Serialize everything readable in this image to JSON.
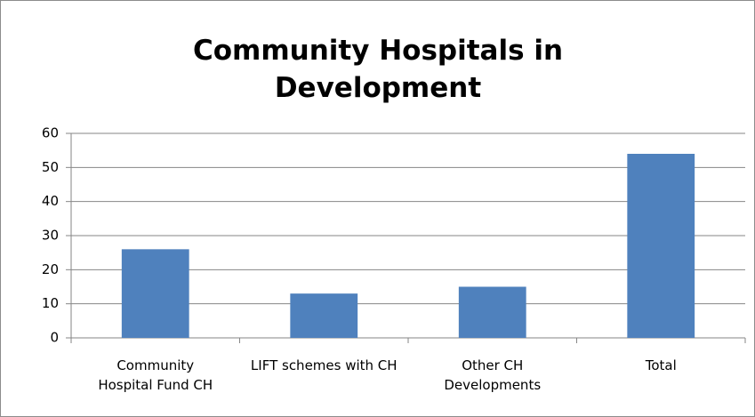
{
  "chart_data": {
    "type": "bar",
    "title": "Community Hospitals in Development",
    "categories": [
      "Community Hospital Fund  CH",
      "LIFT schemes with CH",
      "Other CH Developments",
      "Total"
    ],
    "values": [
      26,
      13,
      15,
      54
    ],
    "color": "#4f81bd",
    "ylim": [
      0,
      60
    ],
    "yticks": [
      0,
      10,
      20,
      30,
      40,
      50,
      60
    ],
    "grid": true
  }
}
